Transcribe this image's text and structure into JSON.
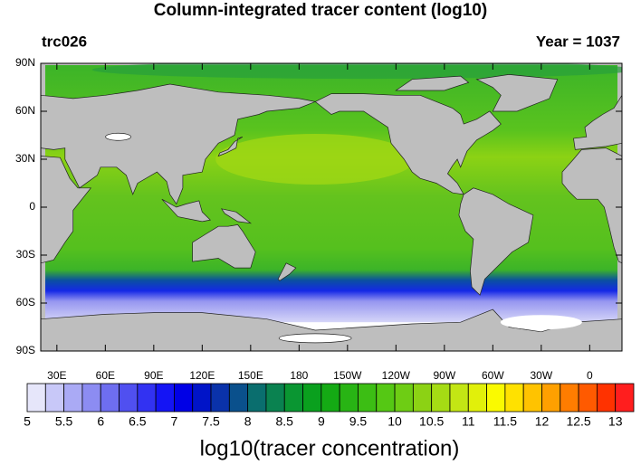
{
  "map": {
    "title": "Column-integrated tracer content (log10)",
    "left_label": "trc026",
    "right_label": "Year = 1037",
    "lat_ticks": [
      "90N",
      "60N",
      "30N",
      "0",
      "30S",
      "60S",
      "90S"
    ],
    "lon_ticks": [
      "30E",
      "60E",
      "90E",
      "120E",
      "150E",
      "180",
      "150W",
      "120W",
      "90W",
      "60W",
      "30W",
      "0"
    ],
    "colorbar": {
      "title": "log10(tracer concentration)",
      "levels": [
        5,
        5.5,
        6,
        6.5,
        7,
        7.5,
        8,
        8.5,
        9,
        9.5,
        10,
        10.5,
        11,
        11.5,
        12,
        12.5,
        13
      ],
      "colors": [
        "#e6e6fa",
        "#c8c8f8",
        "#aaaaf5",
        "#8c8cf2",
        "#6e6ef0",
        "#5050f0",
        "#3232f2",
        "#1414f5",
        "#0000e6",
        "#0014c8",
        "#0a32aa",
        "#0a508c",
        "#0a6e6e",
        "#0a8250",
        "#0a9632",
        "#0aa01e",
        "#14aa14",
        "#28b414",
        "#3cbe14",
        "#55c814",
        "#6ecd14",
        "#8cd214",
        "#a5dc14",
        "#c3e614",
        "#e1f00a",
        "#fafa00",
        "#ffe100",
        "#ffc300",
        "#ffa000",
        "#ff7d00",
        "#ff5a00",
        "#ff3200",
        "#ff1e1e"
      ]
    }
  }
}
